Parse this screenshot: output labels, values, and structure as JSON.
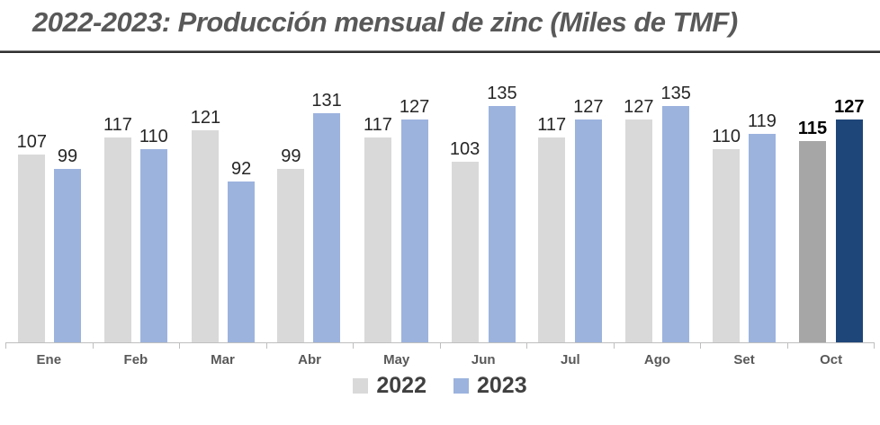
{
  "page": {
    "title": "2022-2023: Producción mensual de zinc (Miles de TMF)"
  },
  "legend": {
    "items": [
      {
        "label": "2022",
        "color": "#D9D9D9"
      },
      {
        "label": "2023",
        "color": "#9CB3DE"
      }
    ]
  },
  "chart_data": {
    "type": "bar",
    "title": "2022-2023: Producción mensual de zinc (Miles de TMF)",
    "categories": [
      "Ene",
      "Feb",
      "Mar",
      "Abr",
      "May",
      "Jun",
      "Jul",
      "Ago",
      "Set",
      "Oct"
    ],
    "series": [
      {
        "name": "2022",
        "values": [
          107,
          117,
          121,
          99,
          117,
          103,
          117,
          127,
          110,
          115
        ],
        "color": "#D9D9D9",
        "highlight_color": "#A6A6A6"
      },
      {
        "name": "2023",
        "values": [
          99,
          110,
          92,
          131,
          127,
          135,
          127,
          135,
          119,
          127
        ],
        "color": "#9CB3DE",
        "highlight_color": "#1F4679"
      }
    ],
    "highlight_category": "Oct",
    "value_labels": true,
    "xlabel": "",
    "ylabel": "",
    "ylim": [
      0,
      140
    ],
    "grid": false,
    "legend_position": "bottom"
  }
}
